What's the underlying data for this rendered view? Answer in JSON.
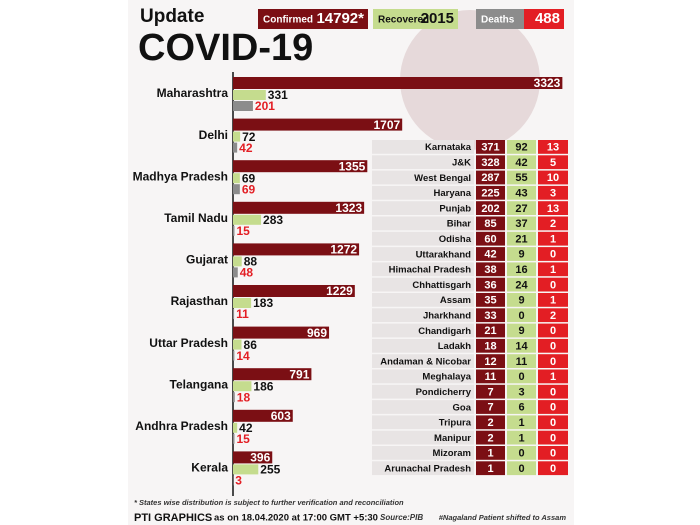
{
  "chart_data": {
    "type": "bar",
    "orientation": "horizontal",
    "subtitle": "Update",
    "title": "COVID-19",
    "categories": [
      "Maharashtra",
      "Delhi",
      "Madhya Pradesh",
      "Tamil Nadu",
      "Gujarat",
      "Rajasthan",
      "Uttar Pradesh",
      "Telangana",
      "Andhra Pradesh",
      "Kerala"
    ],
    "series": [
      {
        "name": "Confirmed",
        "total": "14792*",
        "color": "#7b0f14",
        "values": [
          3323,
          1707,
          1355,
          1323,
          1272,
          1229,
          969,
          791,
          603,
          396
        ]
      },
      {
        "name": "Recovered",
        "total": 2015,
        "color": "#c5dc8e",
        "values": [
          331,
          72,
          69,
          283,
          88,
          183,
          86,
          186,
          42,
          255
        ]
      },
      {
        "name": "Deaths",
        "total": 488,
        "color": "#8c8c8c",
        "values": [
          201,
          42,
          69,
          15,
          48,
          11,
          14,
          18,
          15,
          3
        ]
      }
    ],
    "xlim": [
      0,
      3400
    ]
  },
  "table": {
    "rows": [
      [
        "Karnataka",
        371,
        92,
        13
      ],
      [
        "J&K",
        328,
        42,
        5
      ],
      [
        "West Bengal",
        287,
        55,
        10
      ],
      [
        "Haryana",
        225,
        43,
        3
      ],
      [
        "Punjab",
        202,
        27,
        13
      ],
      [
        "Bihar",
        85,
        37,
        2
      ],
      [
        "Odisha",
        60,
        21,
        1
      ],
      [
        "Uttarakhand",
        42,
        9,
        0
      ],
      [
        "Himachal Pradesh",
        38,
        16,
        1
      ],
      [
        "Chhattisgarh",
        36,
        24,
        0
      ],
      [
        "Assam",
        35,
        9,
        1
      ],
      [
        "Jharkhand",
        33,
        0,
        2
      ],
      [
        "Chandigarh",
        21,
        9,
        0
      ],
      [
        "Ladakh",
        18,
        14,
        0
      ],
      [
        "Andaman & Nicobar",
        12,
        11,
        0
      ],
      [
        "Meghalaya",
        11,
        0,
        1
      ],
      [
        "Pondicherry",
        7,
        3,
        0
      ],
      [
        "Goa",
        7,
        6,
        0
      ],
      [
        "Tripura",
        2,
        1,
        0
      ],
      [
        "Manipur",
        2,
        1,
        0
      ],
      [
        "Mizoram",
        1,
        0,
        0
      ],
      [
        "Arunachal Pradesh",
        1,
        0,
        0
      ]
    ]
  },
  "footer": {
    "note": "* States wise distribution is subject to further verification and reconciliation",
    "brand": "PTI GRAPHICS",
    "date": "as on 18.04.2020 at 17:00 GMT +5:30",
    "source": "Source:PIB",
    "footnote": "#Nagaland Patient shifted to Assam"
  }
}
